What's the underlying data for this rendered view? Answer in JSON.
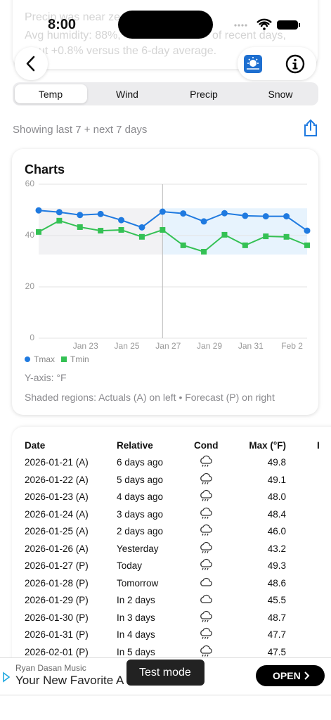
{
  "status_bar": {
    "time": "8:00"
  },
  "background_summary": {
    "lines": [
      "Precip was near ze",
      "Avg humidity: 88%, ",
      "of recent days,",
      "ut +0.8% versus the 6-day average."
    ]
  },
  "tabs": [
    "Temp",
    "Wind",
    "Precip",
    "Snow"
  ],
  "range_text": "Showing last 7 + next 7 days",
  "chart_card": {
    "title": "Charts",
    "y_axis_note": "Y-axis: °F",
    "shading_note": "Shaded regions: Actuals (A) on left • Forecast (P) on right"
  },
  "chart_data": {
    "type": "line",
    "categories": [
      null,
      null,
      "Jan 23",
      null,
      "Jan 25",
      null,
      "Jan 27",
      null,
      "Jan 29",
      null,
      "Jan 31",
      null,
      "Feb 2",
      null
    ],
    "series": [
      {
        "name": "Tmax",
        "color": "#1f7ae0",
        "values": [
          49.8,
          49.1,
          48.0,
          48.4,
          46.0,
          43.2,
          49.3,
          48.6,
          45.5,
          48.7,
          47.7,
          47.5,
          47.5,
          41.9
        ]
      },
      {
        "name": "Tmin",
        "color": "#34c154",
        "values": [
          41.4,
          45.8,
          43.3,
          41.9,
          42.2,
          39.5,
          42.2,
          36.2,
          33.7,
          40.3,
          36.2,
          39.7,
          39.5,
          36.2
        ]
      }
    ],
    "ylim": [
      0,
      60
    ],
    "yticks": [
      0,
      20,
      40,
      60
    ],
    "grid": true,
    "legend": "bottom-left"
  },
  "table": {
    "header": [
      "Date",
      "Relative",
      "Cond",
      "Max (°F)",
      "I"
    ],
    "rows": [
      [
        "2026-01-21 (A)",
        "6 days ago",
        "49.8"
      ],
      [
        "2026-01-22 (A)",
        "5 days ago",
        "49.1"
      ],
      [
        "2026-01-23 (A)",
        "4 days ago",
        "48.0"
      ],
      [
        "2026-01-24 (A)",
        "3 days ago",
        "48.4"
      ],
      [
        "2026-01-25 (A)",
        "2 days ago",
        "46.0"
      ],
      [
        "2026-01-26 (A)",
        "Yesterday",
        "43.2"
      ],
      [
        "2026-01-27 (P)",
        "Today",
        "49.3"
      ],
      [
        "2026-01-28 (P)",
        "Tomorrow",
        "48.6"
      ],
      [
        "2026-01-29 (P)",
        "In 2 days",
        "45.5"
      ],
      [
        "2026-01-30 (P)",
        "In 3 days",
        "48.7"
      ],
      [
        "2026-01-31 (P)",
        "In 4 days",
        "47.7"
      ],
      [
        "2026-02-01 (P)",
        "In 5 days",
        "47.5"
      ]
    ]
  },
  "ad": {
    "advertiser": "Ryan Dasan Music",
    "headline": "Your New Favorite A",
    "button": "OPEN",
    "toast": "Test mode"
  }
}
